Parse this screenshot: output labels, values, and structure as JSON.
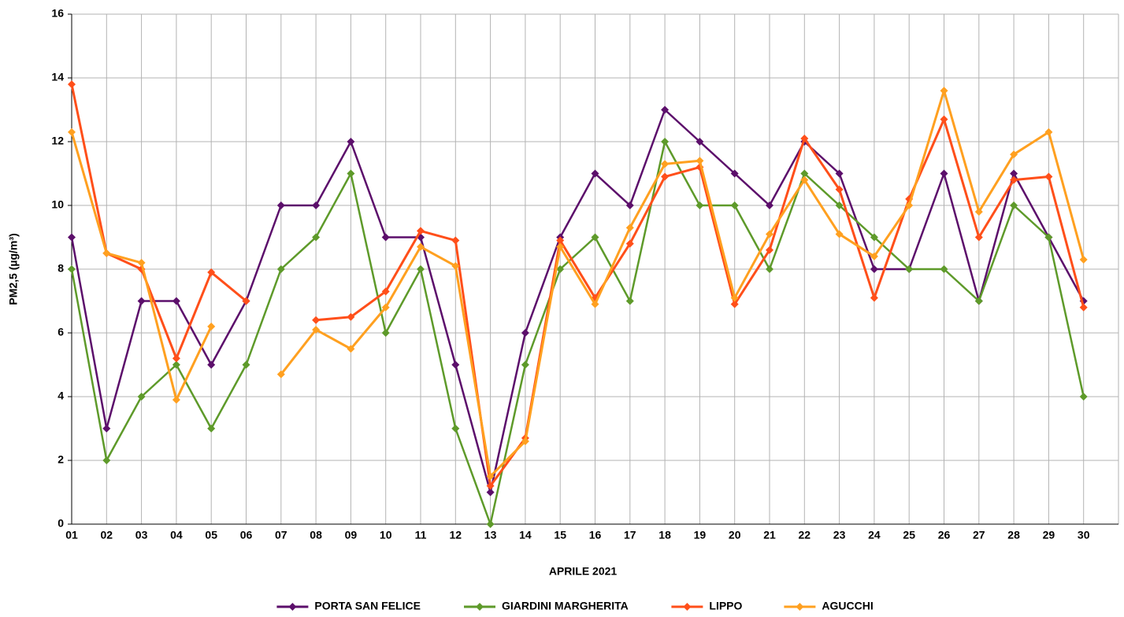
{
  "chart_data": {
    "type": "line",
    "x_label": "APRILE 2021",
    "y_label": "PM2,5 (µg/m³)",
    "categories": [
      "01",
      "02",
      "03",
      "04",
      "05",
      "06",
      "07",
      "08",
      "09",
      "10",
      "11",
      "12",
      "13",
      "14",
      "15",
      "16",
      "17",
      "18",
      "19",
      "20",
      "21",
      "22",
      "23",
      "24",
      "25",
      "26",
      "27",
      "28",
      "29",
      "30"
    ],
    "series": [
      {
        "name": "PORTA SAN FELICE",
        "color": "#5c0f6b",
        "values": [
          9,
          3,
          7,
          7,
          5,
          7,
          10,
          10,
          12,
          9,
          9,
          5,
          1,
          6,
          9,
          11,
          10,
          13,
          12,
          11,
          10,
          12,
          11,
          8,
          8,
          11,
          7,
          11,
          9,
          7
        ]
      },
      {
        "name": "GIARDINI MARGHERITA",
        "color": "#5e9a2a",
        "values": [
          8,
          2,
          4,
          5,
          3,
          5,
          8,
          9,
          11,
          6,
          8,
          3,
          0,
          5,
          8,
          9,
          7,
          12,
          10,
          10,
          8,
          11,
          10,
          9,
          8,
          8,
          7,
          10,
          9,
          4
        ]
      },
      {
        "name": "LIPPO",
        "color": "#ff4f1a",
        "values": [
          13.8,
          8.5,
          8.0,
          5.2,
          7.9,
          7.0,
          null,
          6.4,
          6.5,
          7.3,
          9.2,
          8.9,
          1.2,
          2.7,
          8.9,
          7.1,
          8.8,
          10.9,
          11.2,
          6.9,
          8.6,
          12.1,
          10.5,
          7.1,
          10.2,
          12.7,
          9.0,
          10.8,
          10.9,
          6.8
        ]
      },
      {
        "name": "AGUCCHI",
        "color": "#ffa020",
        "values": [
          12.3,
          8.5,
          8.2,
          3.9,
          6.2,
          null,
          4.7,
          6.1,
          5.5,
          6.8,
          8.7,
          8.1,
          1.5,
          2.6,
          8.7,
          6.9,
          9.3,
          11.3,
          11.4,
          7.1,
          9.1,
          10.8,
          9.1,
          8.4,
          10.0,
          13.6,
          9.8,
          11.6,
          12.3,
          8.3
        ]
      }
    ],
    "ylim": [
      0,
      16
    ],
    "yticks": [
      0,
      2,
      4,
      6,
      8,
      10,
      12,
      14,
      16
    ],
    "grid": true,
    "legend": "bottom"
  }
}
